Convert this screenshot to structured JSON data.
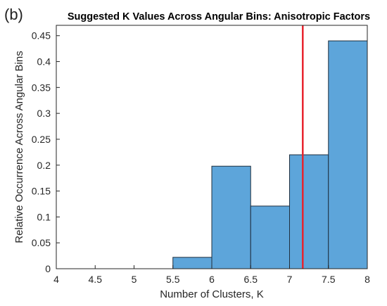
{
  "panel_label": "(b)",
  "chart_data": {
    "type": "bar",
    "title": "Suggested K Values Across Angular Bins: Anisotropic Factors",
    "xlabel": "Number of Clusters, K",
    "ylabel": "Relative Occurrence Across Angular Bins",
    "xlim": [
      4,
      8
    ],
    "ylim": [
      0,
      0.47
    ],
    "x_ticks": [
      "4",
      "4.5",
      "5",
      "5.5",
      "6",
      "6.5",
      "7",
      "7.5",
      "8"
    ],
    "y_ticks": [
      "0",
      "0.05",
      "0.1",
      "0.15",
      "0.2",
      "0.25",
      "0.3",
      "0.35",
      "0.4",
      "0.45"
    ],
    "bins": [
      {
        "start": 5.5,
        "end": 6.0,
        "value": 0.022
      },
      {
        "start": 6.0,
        "end": 6.5,
        "value": 0.198
      },
      {
        "start": 6.5,
        "end": 7.0,
        "value": 0.121
      },
      {
        "start": 7.0,
        "end": 7.5,
        "value": 0.22
      },
      {
        "start": 7.5,
        "end": 8.0,
        "value": 0.44
      }
    ],
    "reference_line": {
      "x": 7.17,
      "color": "#e8232d"
    },
    "bar_color": "#5da5da",
    "bar_edge_color": "#1f2f3f",
    "grid": false
  }
}
